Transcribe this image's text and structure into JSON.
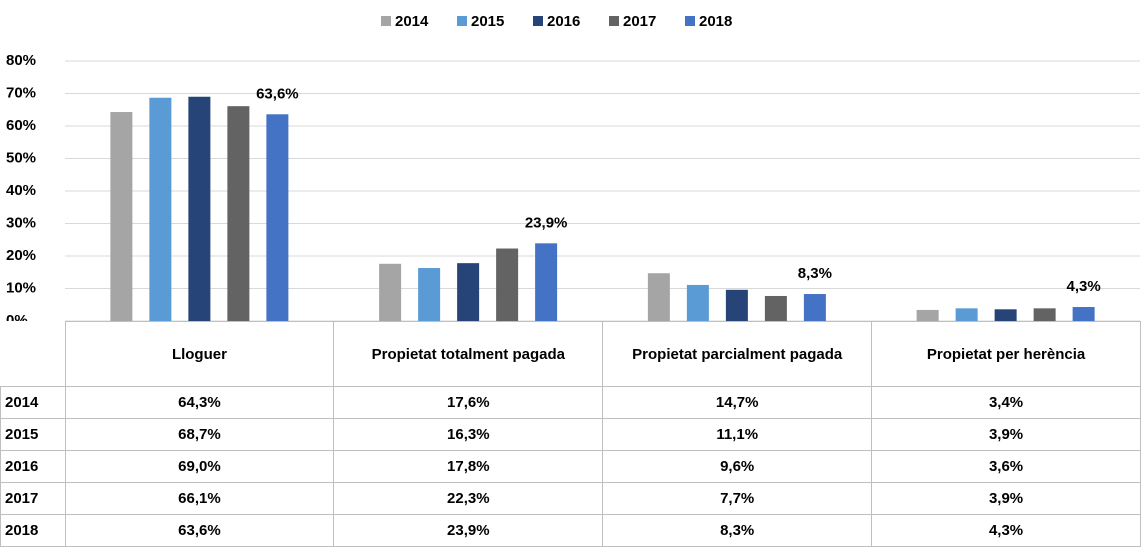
{
  "chart_data": {
    "type": "bar",
    "categories": [
      "Lloguer",
      "Propietat totalment pagada",
      "Propietat parcialment pagada",
      "Propietat per herència"
    ],
    "series": [
      {
        "name": "2014",
        "color": "#a5a5a5",
        "values": [
          64.3,
          17.6,
          14.7,
          3.4
        ],
        "value_labels": [
          "64,3%",
          "17,6%",
          "14,7%",
          "3,4%"
        ]
      },
      {
        "name": "2015",
        "color": "#5b9bd5",
        "values": [
          68.7,
          16.3,
          11.1,
          3.9
        ],
        "value_labels": [
          "68,7%",
          "16,3%",
          "11,1%",
          "3,9%"
        ]
      },
      {
        "name": "2016",
        "color": "#264478",
        "values": [
          69.0,
          17.8,
          9.6,
          3.6
        ],
        "value_labels": [
          "69,0%",
          "17,8%",
          "9,6%",
          "3,6%"
        ]
      },
      {
        "name": "2017",
        "color": "#636363",
        "values": [
          66.1,
          22.3,
          7.7,
          3.9
        ],
        "value_labels": [
          "66,1%",
          "22,3%",
          "7,7%",
          "3,9%"
        ]
      },
      {
        "name": "2018",
        "color": "#4472c4",
        "values": [
          63.6,
          23.9,
          8.3,
          4.3
        ],
        "value_labels": [
          "63,6%",
          "23,9%",
          "8,3%",
          "4,3%"
        ],
        "show_labels": true
      }
    ],
    "ylim": [
      0,
      80
    ],
    "yticks": [
      {
        "value": 0,
        "label": "0%"
      },
      {
        "value": 10,
        "label": "10%"
      },
      {
        "value": 20,
        "label": "20%"
      },
      {
        "value": 30,
        "label": "30%"
      },
      {
        "value": 40,
        "label": "40%"
      },
      {
        "value": 50,
        "label": "50%"
      },
      {
        "value": 60,
        "label": "60%"
      },
      {
        "value": 70,
        "label": "70%"
      },
      {
        "value": 80,
        "label": "80%"
      }
    ],
    "grid": true,
    "legend": "top",
    "data_table": true
  }
}
